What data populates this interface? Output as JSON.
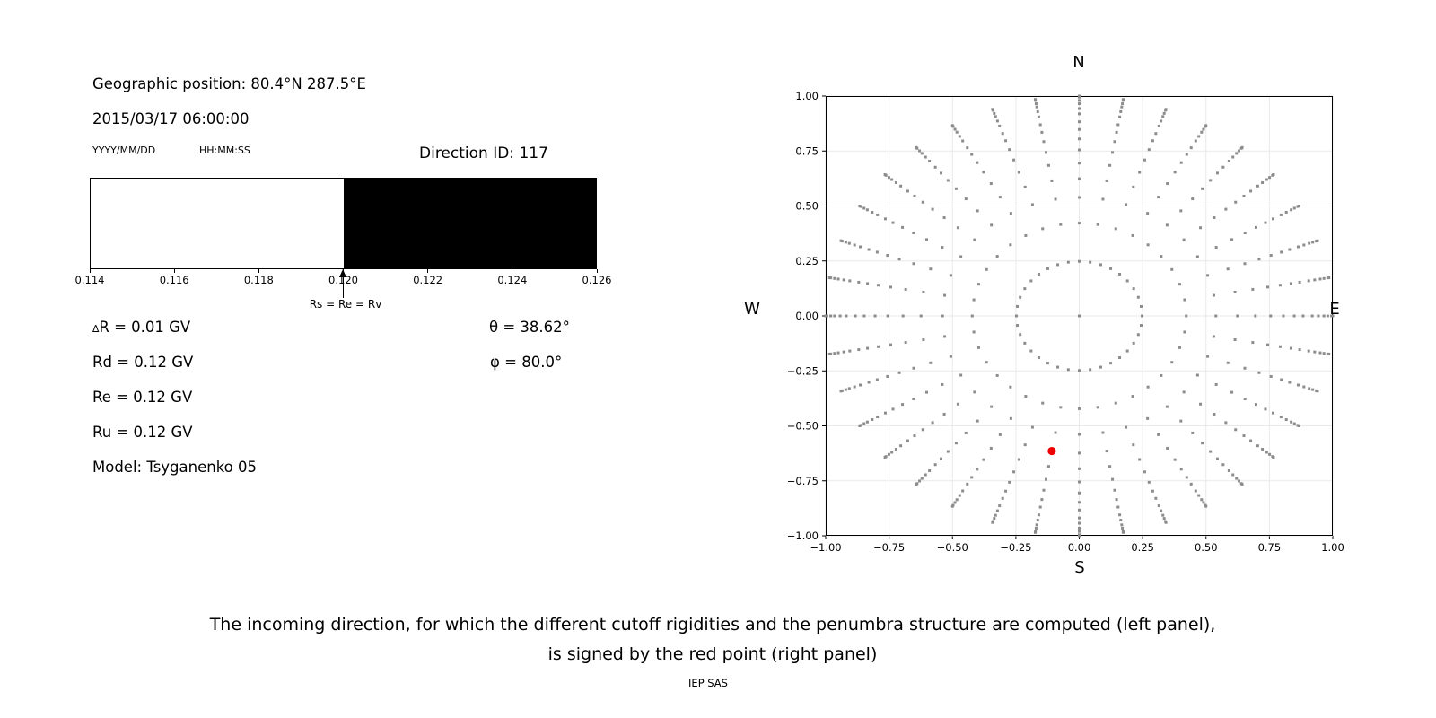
{
  "header": {
    "geographic_position": "Geographic position: 80.4°N 287.5°E",
    "datetime": "2015/03/17 06:00:00",
    "date_format": "YYYY/MM/DD",
    "time_format": "HH:MM:SS",
    "direction_id": "Direction ID: 117"
  },
  "parameters": {
    "delta_symbol": "∆",
    "delta_rest": "R = 0.01 GV",
    "rd": "Rd = 0.12 GV",
    "re": "Re = 0.12 GV",
    "ru": "Ru = 0.12 GV",
    "model": "Model: Tsyganenko 05",
    "theta": "θ = 38.62°",
    "phi": "φ = 80.0°"
  },
  "caption": {
    "line1": "The incoming direction, for which the different cutoff rigidities and the penumbra structure are computed (left panel),",
    "line2": "is signed by the red point (right panel)",
    "credit": "IEP SAS"
  },
  "chart_data": [
    {
      "type": "bar",
      "xlim": [
        0.114,
        0.126
      ],
      "xtick_labels": [
        "0.114",
        "0.116",
        "0.118",
        "0.120",
        "0.122",
        "0.124",
        "0.126"
      ],
      "segments": [
        {
          "x_start": 0.114,
          "x_end": 0.12,
          "color": "#ffffff"
        },
        {
          "x_start": 0.12,
          "x_end": 0.126,
          "color": "#000000"
        }
      ],
      "arrow_annotation": {
        "x": 0.12,
        "label": "Rs = Re = Rv"
      }
    },
    {
      "type": "scatter",
      "xlim": [
        -1,
        1
      ],
      "ylim": [
        -1,
        1
      ],
      "grid": true,
      "xtick_labels": [
        "−1.00",
        "−0.75",
        "−0.50",
        "−0.25",
        "0.00",
        "0.25",
        "0.50",
        "0.75",
        "1.00"
      ],
      "ytick_labels": [
        "1.00",
        "0.75",
        "0.50",
        "0.25",
        "0.00",
        "−0.25",
        "−0.50",
        "−0.75",
        "−1.00"
      ],
      "compass": {
        "north": "N",
        "south": "S",
        "west": "W",
        "east": "E"
      },
      "direction_grid": {
        "azimuth_start_deg": 0,
        "azimuth_step_deg": 10,
        "azimuth_count": 36,
        "spoke_radii": [
          0.248,
          0.422,
          0.539,
          0.624,
          0.695,
          0.755,
          0.805,
          0.848,
          0.883,
          0.919,
          0.943,
          0.965,
          0.98,
          0.995,
          1.0
        ],
        "center_dot": true,
        "dot_color": "#8c8c8c"
      },
      "selected_direction": {
        "azimuth_deg": 190,
        "radius": 0.624,
        "color": "#ee0000"
      }
    }
  ]
}
